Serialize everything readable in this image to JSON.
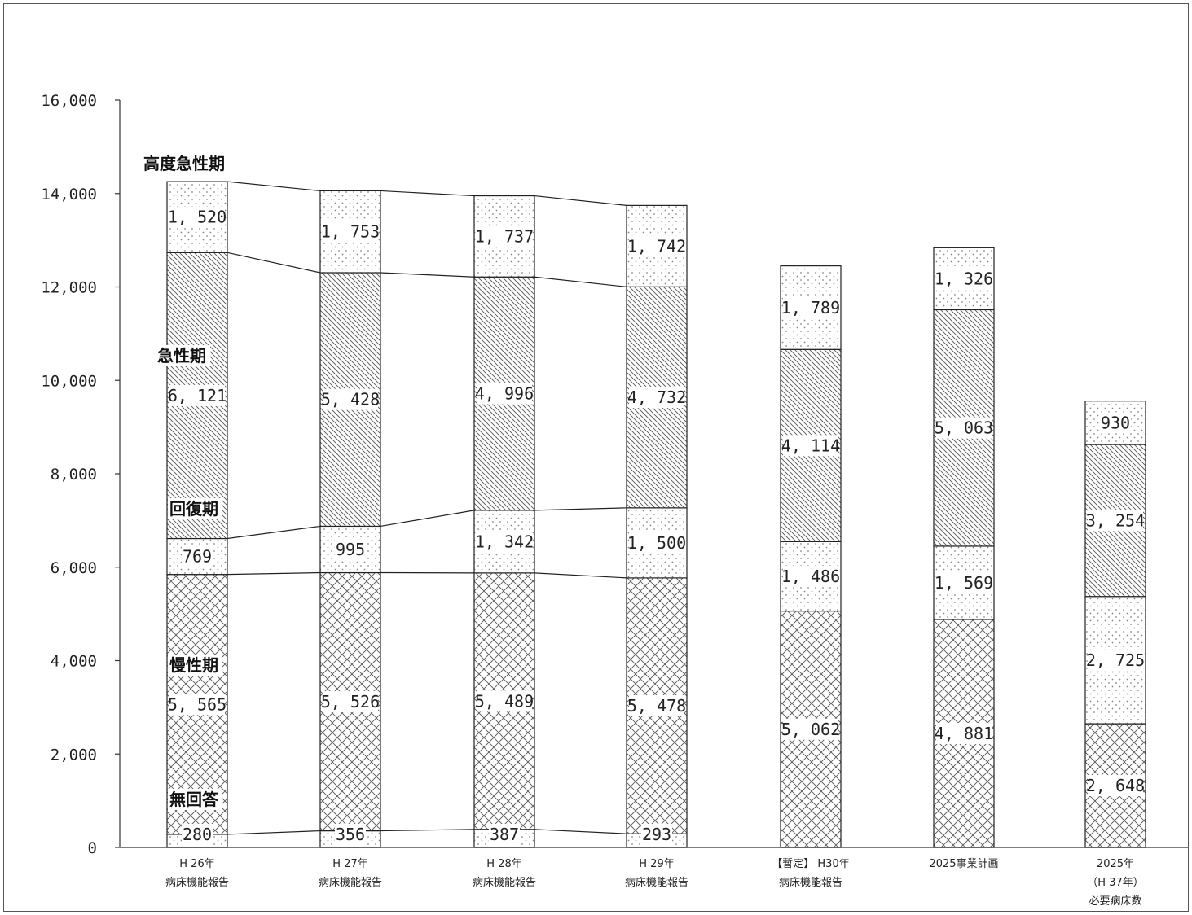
{
  "chart_data": {
    "type": "bar",
    "stacked": true,
    "title": "",
    "xlabel": "",
    "ylabel": "",
    "ylim": [
      0,
      16000
    ],
    "yticks": [
      0,
      2000,
      4000,
      6000,
      8000,
      10000,
      12000,
      14000,
      16000
    ],
    "ytick_labels": [
      "0",
      "2,000",
      "4,000",
      "6,000",
      "8,000",
      "10,000",
      "12,000",
      "14,000",
      "16,000"
    ],
    "categories": [
      [
        "H 26年",
        "病床機能報告"
      ],
      [
        "H 27年",
        "病床機能報告"
      ],
      [
        "H 28年",
        "病床機能報告"
      ],
      [
        "H 29年",
        "病床機能報告"
      ],
      [
        "【暫定】 H30年",
        "病床機能報告"
      ],
      [
        "2025事業計画"
      ],
      [
        "2025年",
        "（H 37年）",
        "必要病床数"
      ]
    ],
    "series": [
      {
        "name": "無回答",
        "values": [
          280,
          356,
          387,
          293,
          0,
          0,
          0
        ],
        "labels": [
          "280",
          "356",
          "387",
          "293",
          "",
          "",
          ""
        ]
      },
      {
        "name": "慢性期",
        "values": [
          5565,
          5526,
          5489,
          5478,
          5062,
          4881,
          2648
        ],
        "labels": [
          "5, 565",
          "5, 526",
          "5, 489",
          "5, 478",
          "5, 062",
          "4, 881",
          "2, 648"
        ]
      },
      {
        "name": "回復期",
        "values": [
          769,
          995,
          1342,
          1500,
          1486,
          1569,
          2725
        ],
        "labels": [
          "769",
          "995",
          "1, 342",
          "1, 500",
          "1, 486",
          "1, 569",
          "2, 725"
        ]
      },
      {
        "name": "急性期",
        "values": [
          6121,
          5428,
          4996,
          4732,
          4114,
          5063,
          3254
        ],
        "labels": [
          "6, 121",
          "5, 428",
          "4, 996",
          "4, 732",
          "4, 114",
          "5, 063",
          "3, 254"
        ]
      },
      {
        "name": "高度急性期",
        "values": [
          1520,
          1753,
          1737,
          1742,
          1789,
          1326,
          930
        ],
        "labels": [
          "1, 520",
          "1, 753",
          "1, 737",
          "1, 742",
          "1, 789",
          "1, 326",
          "930"
        ]
      }
    ],
    "connector_lines_between_first_n_bars": 4,
    "grid": false,
    "legend": "inline-left"
  }
}
